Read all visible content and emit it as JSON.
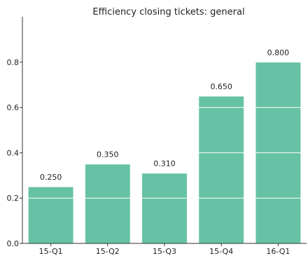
{
  "chart_data": {
    "type": "bar",
    "title": "Efficiency closing tickets: general",
    "xlabel": "",
    "ylabel": "",
    "categories": [
      "15-Q1",
      "15-Q2",
      "15-Q3",
      "15-Q4",
      "16-Q1"
    ],
    "values": [
      0.25,
      0.35,
      0.31,
      0.65,
      0.8
    ],
    "data_labels": [
      "0.250",
      "0.350",
      "0.310",
      "0.650",
      "0.800"
    ],
    "ylim": [
      0,
      1.0
    ],
    "yticks": [
      0.0,
      0.2,
      0.4,
      0.6,
      0.8
    ],
    "ytick_labels": [
      "0.0",
      "0.2",
      "0.4",
      "0.6",
      "0.8"
    ],
    "grid": true,
    "bar_color": "#66c2a5",
    "grid_color": "#ffffff"
  }
}
